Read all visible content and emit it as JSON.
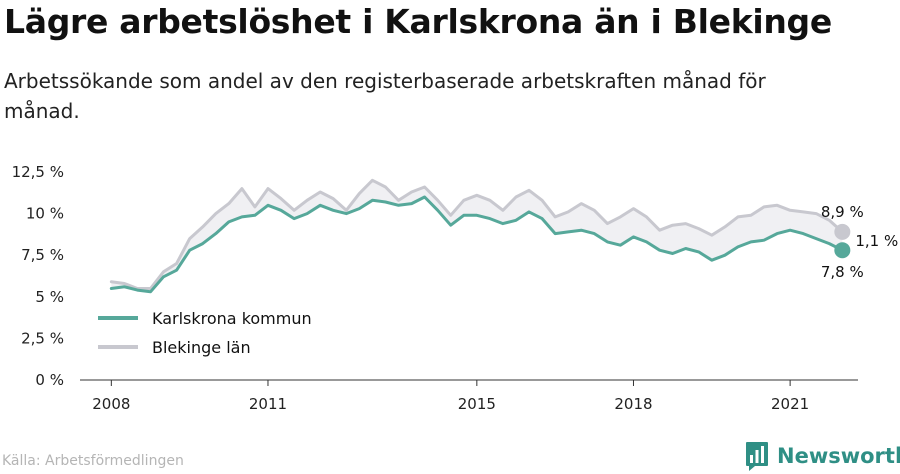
{
  "header": {
    "title": "Lägre arbetslöshet i Karlskrona än i Blekinge",
    "subtitle": "Arbetssökande som andel av den registerbaserade arbetskraften månad för månad."
  },
  "footer": {
    "source": "Källa: Arbetsförmedlingen",
    "brand": "Newsworthy",
    "brand_icon": "bar-chart-logo-icon",
    "brand_color": "#2f8f85"
  },
  "chart_data": {
    "type": "line",
    "y_ticks": [
      {
        "value": 0,
        "label": "0 %"
      },
      {
        "value": 2.5,
        "label": "2,5 %"
      },
      {
        "value": 5,
        "label": "5 %"
      },
      {
        "value": 7.5,
        "label": "7,5 %"
      },
      {
        "value": 10,
        "label": "10 %"
      },
      {
        "value": 12.5,
        "label": "12,5 %"
      }
    ],
    "x_ticks": [
      {
        "value": 2008,
        "label": "2008"
      },
      {
        "value": 2011,
        "label": "2011"
      },
      {
        "value": 2015,
        "label": "2015"
      },
      {
        "value": 2018,
        "label": "2018"
      },
      {
        "value": 2021,
        "label": "2021"
      }
    ],
    "xlim": [
      2007.4,
      2022.3
    ],
    "ylim": [
      0,
      12.5
    ],
    "grid": false,
    "legend_position": "bottom-left",
    "series": [
      {
        "name": "Karlskrona kommun",
        "color": "#56a89a",
        "end_label": "7,8 %",
        "points": [
          [
            2008.0,
            5.5
          ],
          [
            2008.25,
            5.6
          ],
          [
            2008.5,
            5.4
          ],
          [
            2008.75,
            5.3
          ],
          [
            2009.0,
            6.2
          ],
          [
            2009.25,
            6.6
          ],
          [
            2009.5,
            7.8
          ],
          [
            2009.75,
            8.2
          ],
          [
            2010.0,
            8.8
          ],
          [
            2010.25,
            9.5
          ],
          [
            2010.5,
            9.8
          ],
          [
            2010.75,
            9.9
          ],
          [
            2011.0,
            10.5
          ],
          [
            2011.25,
            10.2
          ],
          [
            2011.5,
            9.7
          ],
          [
            2011.75,
            10.0
          ],
          [
            2012.0,
            10.5
          ],
          [
            2012.25,
            10.2
          ],
          [
            2012.5,
            10.0
          ],
          [
            2012.75,
            10.3
          ],
          [
            2013.0,
            10.8
          ],
          [
            2013.25,
            10.7
          ],
          [
            2013.5,
            10.5
          ],
          [
            2013.75,
            10.6
          ],
          [
            2014.0,
            11.0
          ],
          [
            2014.25,
            10.2
          ],
          [
            2014.5,
            9.3
          ],
          [
            2014.75,
            9.9
          ],
          [
            2015.0,
            9.9
          ],
          [
            2015.25,
            9.7
          ],
          [
            2015.5,
            9.4
          ],
          [
            2015.75,
            9.6
          ],
          [
            2016.0,
            10.1
          ],
          [
            2016.25,
            9.7
          ],
          [
            2016.5,
            8.8
          ],
          [
            2016.75,
            8.9
          ],
          [
            2017.0,
            9.0
          ],
          [
            2017.25,
            8.8
          ],
          [
            2017.5,
            8.3
          ],
          [
            2017.75,
            8.1
          ],
          [
            2018.0,
            8.6
          ],
          [
            2018.25,
            8.3
          ],
          [
            2018.5,
            7.8
          ],
          [
            2018.75,
            7.6
          ],
          [
            2019.0,
            7.9
          ],
          [
            2019.25,
            7.7
          ],
          [
            2019.5,
            7.2
          ],
          [
            2019.75,
            7.5
          ],
          [
            2020.0,
            8.0
          ],
          [
            2020.25,
            8.3
          ],
          [
            2020.5,
            8.4
          ],
          [
            2020.75,
            8.8
          ],
          [
            2021.0,
            9.0
          ],
          [
            2021.25,
            8.8
          ],
          [
            2021.5,
            8.5
          ],
          [
            2021.75,
            8.2
          ],
          [
            2022.0,
            7.8
          ]
        ]
      },
      {
        "name": "Blekinge län",
        "color": "#c8c8cf",
        "end_label": "8,9 %",
        "points": [
          [
            2008.0,
            5.9
          ],
          [
            2008.25,
            5.8
          ],
          [
            2008.5,
            5.5
          ],
          [
            2008.75,
            5.5
          ],
          [
            2009.0,
            6.5
          ],
          [
            2009.25,
            7.0
          ],
          [
            2009.5,
            8.5
          ],
          [
            2009.75,
            9.2
          ],
          [
            2010.0,
            10.0
          ],
          [
            2010.25,
            10.6
          ],
          [
            2010.5,
            11.5
          ],
          [
            2010.75,
            10.4
          ],
          [
            2011.0,
            11.5
          ],
          [
            2011.25,
            10.9
          ],
          [
            2011.5,
            10.2
          ],
          [
            2011.75,
            10.8
          ],
          [
            2012.0,
            11.3
          ],
          [
            2012.25,
            10.9
          ],
          [
            2012.5,
            10.2
          ],
          [
            2012.75,
            11.2
          ],
          [
            2013.0,
            12.0
          ],
          [
            2013.25,
            11.6
          ],
          [
            2013.5,
            10.8
          ],
          [
            2013.75,
            11.3
          ],
          [
            2014.0,
            11.6
          ],
          [
            2014.25,
            10.8
          ],
          [
            2014.5,
            9.9
          ],
          [
            2014.75,
            10.8
          ],
          [
            2015.0,
            11.1
          ],
          [
            2015.25,
            10.8
          ],
          [
            2015.5,
            10.2
          ],
          [
            2015.75,
            11.0
          ],
          [
            2016.0,
            11.4
          ],
          [
            2016.25,
            10.8
          ],
          [
            2016.5,
            9.8
          ],
          [
            2016.75,
            10.1
          ],
          [
            2017.0,
            10.6
          ],
          [
            2017.25,
            10.2
          ],
          [
            2017.5,
            9.4
          ],
          [
            2017.75,
            9.8
          ],
          [
            2018.0,
            10.3
          ],
          [
            2018.25,
            9.8
          ],
          [
            2018.5,
            9.0
          ],
          [
            2018.75,
            9.3
          ],
          [
            2019.0,
            9.4
          ],
          [
            2019.25,
            9.1
          ],
          [
            2019.5,
            8.7
          ],
          [
            2019.75,
            9.2
          ],
          [
            2020.0,
            9.8
          ],
          [
            2020.25,
            9.9
          ],
          [
            2020.5,
            10.4
          ],
          [
            2020.75,
            10.5
          ],
          [
            2021.0,
            10.2
          ],
          [
            2021.25,
            10.1
          ],
          [
            2021.5,
            10.0
          ],
          [
            2021.75,
            9.6
          ],
          [
            2022.0,
            8.9
          ]
        ]
      }
    ],
    "difference_label": "1,1 %"
  }
}
